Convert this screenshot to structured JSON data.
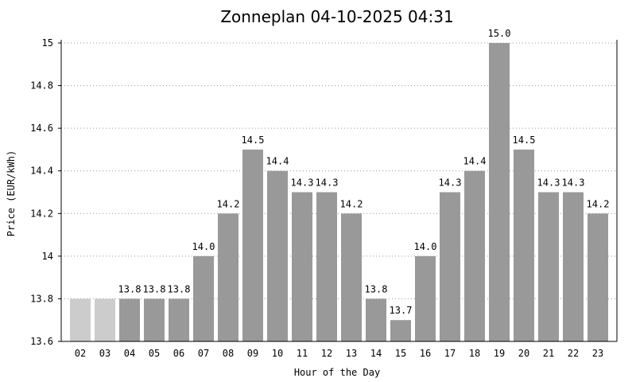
{
  "chart_data": {
    "type": "bar",
    "title": "Zonneplan 04-10-2025 04:31",
    "xlabel": "Hour of the Day",
    "ylabel": "Price (EUR/kWh)",
    "ylim": [
      13.6,
      15.0
    ],
    "yticks": [
      "13.6",
      "13.8",
      "14",
      "14.2",
      "14.4",
      "14.6",
      "14.8",
      "15"
    ],
    "grid": true,
    "categories": [
      "02",
      "03",
      "04",
      "05",
      "06",
      "07",
      "08",
      "09",
      "10",
      "11",
      "12",
      "13",
      "14",
      "15",
      "16",
      "17",
      "18",
      "19",
      "20",
      "21",
      "22",
      "23"
    ],
    "values": [
      13.8,
      13.8,
      13.8,
      13.8,
      13.8,
      14.0,
      14.2,
      14.5,
      14.4,
      14.3,
      14.3,
      14.2,
      13.8,
      13.7,
      14.0,
      14.3,
      14.4,
      15.0,
      14.5,
      14.3,
      14.3,
      14.2
    ],
    "data_labels": [
      "",
      "",
      "13.8",
      "13.8",
      "13.8",
      "14.0",
      "14.2",
      "14.5",
      "14.4",
      "14.3",
      "14.3",
      "14.2",
      "13.8",
      "13.7",
      "14.0",
      "14.3",
      "14.4",
      "15.0",
      "14.5",
      "14.3",
      "14.3",
      "14.2"
    ],
    "past_hours": [
      "02",
      "03"
    ],
    "colors": {
      "bar": "#999999",
      "past_bar": "#cccccc",
      "grid": "#999999"
    }
  }
}
